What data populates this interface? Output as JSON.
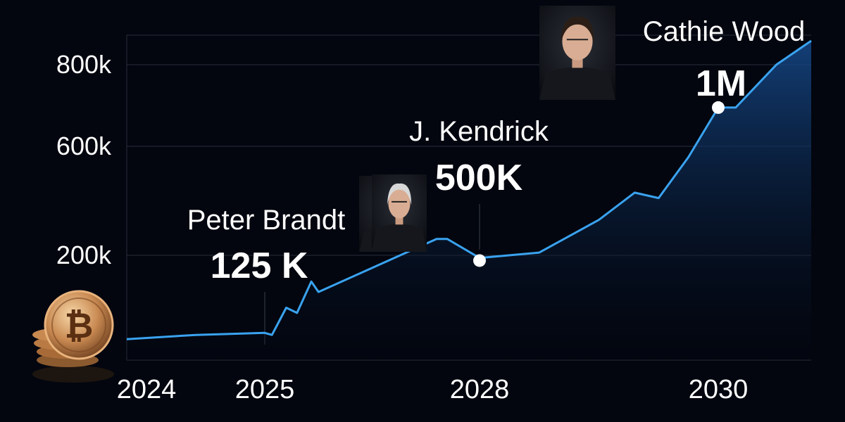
{
  "chart_data": {
    "type": "area",
    "title": "",
    "xlabel": "",
    "ylabel": "",
    "y_tick_labels": [
      "800k",
      "600k",
      "200k"
    ],
    "x_tick_labels": [
      "2024",
      "2025",
      "2028",
      "2030"
    ],
    "grid": true,
    "legend": "none",
    "series": [
      {
        "points": [
          [
            "2024",
            40000
          ],
          [
            "2024.5",
            48000
          ],
          [
            "2025",
            52000
          ],
          [
            "2025.1",
            48000
          ],
          [
            "2025.3",
            100000
          ],
          [
            "2025.45",
            90000
          ],
          [
            "2025.65",
            150000
          ],
          [
            "2025.75",
            130000
          ],
          [
            "2027.4",
            260000
          ],
          [
            "2027.55",
            260000
          ],
          [
            "2028",
            195000
          ],
          [
            "2028.5",
            210000
          ],
          [
            "2029",
            330000
          ],
          [
            "2029.3",
            430000
          ],
          [
            "2029.5",
            410000
          ],
          [
            "2029.75",
            560000
          ],
          [
            "2030",
            695000
          ],
          [
            "2030.15",
            695000
          ],
          [
            "2030.5",
            800000
          ],
          [
            "2030.8",
            880000
          ]
        ]
      }
    ],
    "annotations": [
      {
        "name": "Peter Brandt",
        "value": "125 K",
        "x": "2025",
        "photo": "person-photo"
      },
      {
        "name": "J. Kendrick",
        "value": "500K",
        "x": "2028",
        "y": 190000,
        "photo": "person-photo"
      },
      {
        "name": "Cathie Wood",
        "value": "1M",
        "x": "2030",
        "y": 695000,
        "photo": "person-photo"
      }
    ],
    "colors": {
      "background": "#03060f",
      "line": "#3aa3f0",
      "fill_top": "#123a6e",
      "grid": "#2a2f3a",
      "marker": "#ffffff"
    },
    "decorations": [
      "bitcoin-coins-icon"
    ]
  }
}
